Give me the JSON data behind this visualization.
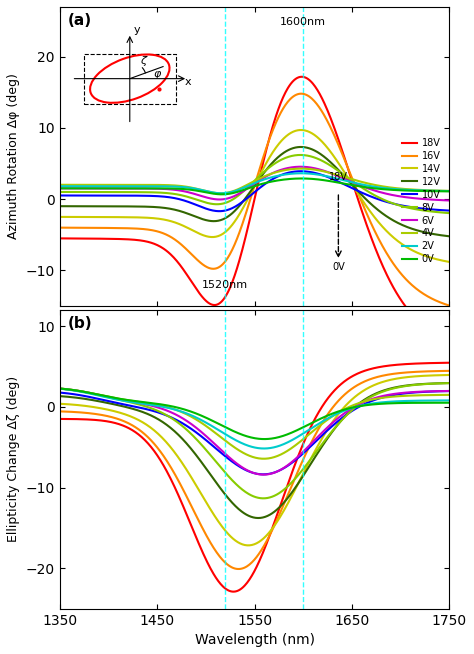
{
  "voltages": [
    0,
    2,
    4,
    6,
    8,
    10,
    12,
    14,
    16,
    18
  ],
  "colors": {
    "18V": "#ff0000",
    "16V": "#ff8800",
    "14V": "#cccc00",
    "12V": "#336600",
    "10V": "#0000ff",
    "8V": "#88cc00",
    "6V": "#cc00cc",
    "4V": "#aacc00",
    "2V": "#00cccc",
    "0V": "#00bb00"
  },
  "wavelength_min": 1350,
  "wavelength_max": 1750,
  "vline1": 1520,
  "vline2": 1600,
  "panel_a": {
    "ylim": [
      -15,
      27
    ],
    "yticks": [
      -10,
      0,
      10,
      20
    ],
    "ylabel": "Azimuth Rotation Δφ (deg)"
  },
  "panel_b": {
    "ylim": [
      -25,
      12
    ],
    "yticks": [
      -20,
      -10,
      0,
      10
    ],
    "ylabel": "Ellipticity Change Δζ (deg)"
  },
  "xlabel": "Wavelength (nm)",
  "xticks": [
    1350,
    1450,
    1550,
    1650,
    1750
  ]
}
